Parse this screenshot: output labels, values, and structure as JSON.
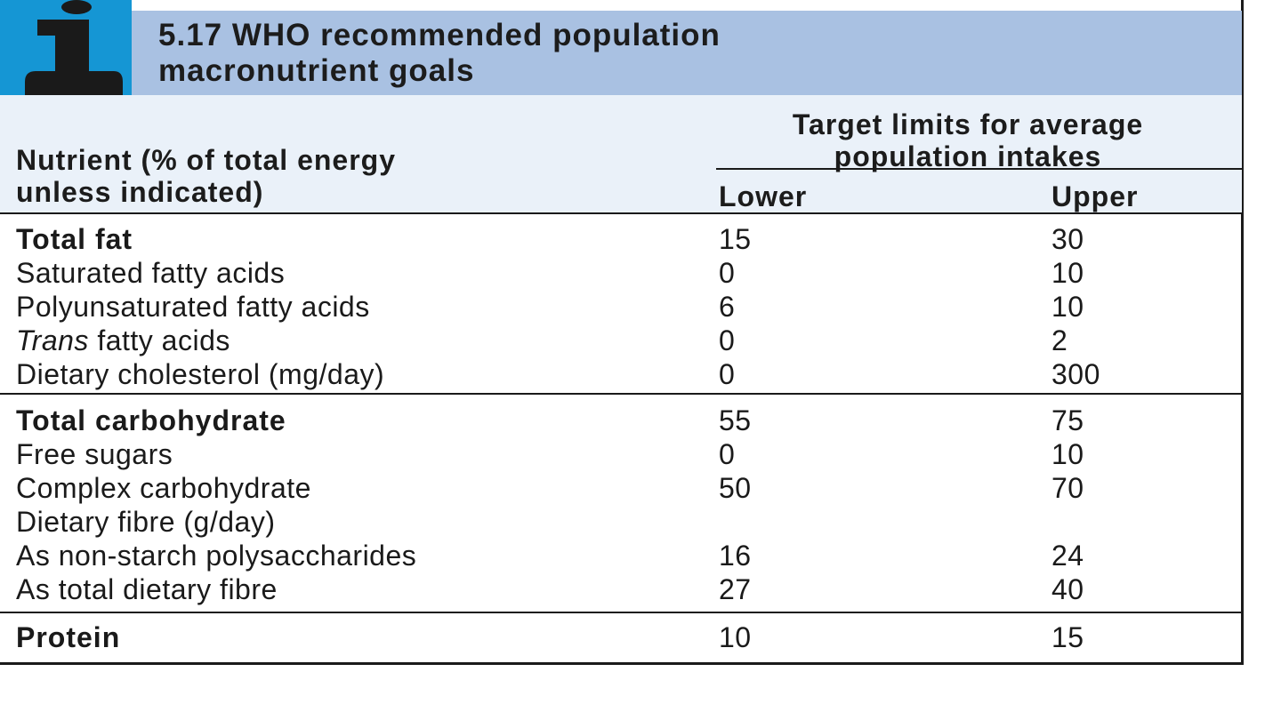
{
  "box": {
    "icon": "info-icon",
    "title": "5.17  WHO recommended population\nmacronutrient goals",
    "colors": {
      "icon_bg": "#1596d4",
      "header_bg": "#a9c1e2",
      "subheader_bg": "#eaf1f9"
    }
  },
  "table": {
    "nutrient_header": "Nutrient (% of total energy\nunless indicated)",
    "target_header": "Target limits for average\npopulation intakes",
    "lower_header": "Lower",
    "upper_header": "Upper",
    "sections": [
      {
        "rows": [
          {
            "label": "Total fat",
            "lower": "15",
            "upper": "30"
          },
          {
            "label": "Saturated fatty acids",
            "lower": "0",
            "upper": "10"
          },
          {
            "label": "Polyunsaturated fatty acids",
            "lower": "6",
            "upper": "10"
          },
          {
            "label_italic": "Trans",
            "label": " fatty acids",
            "lower": "0",
            "upper": "2"
          },
          {
            "label": "Dietary cholesterol (mg/day)",
            "lower": "0",
            "upper": "300"
          }
        ]
      },
      {
        "rows": [
          {
            "label": "Total carbohydrate",
            "lower": "55",
            "upper": "75"
          },
          {
            "label": "Free sugars",
            "lower": "0",
            "upper": "10"
          },
          {
            "label": "Complex carbohydrate",
            "lower": "50",
            "upper": "70"
          },
          {
            "label": "Dietary fibre (g/day)",
            "lower": "",
            "upper": ""
          },
          {
            "label": "As non-starch polysaccharides",
            "lower": "16",
            "upper": "24"
          },
          {
            "label": "As total dietary fibre",
            "lower": "27",
            "upper": "40"
          }
        ]
      },
      {
        "rows": [
          {
            "label": "Protein",
            "lower": "10",
            "upper": "15"
          }
        ]
      }
    ]
  }
}
